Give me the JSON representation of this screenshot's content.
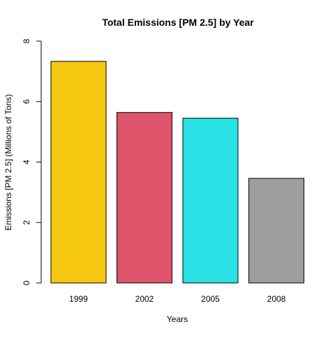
{
  "chart_data": {
    "type": "bar",
    "title": "Total Emissions [PM 2.5] by Year",
    "xlabel": "Years",
    "ylabel": "Emissions [PM 2.5] (Millions of Tons)",
    "categories": [
      "1999",
      "2002",
      "2005",
      "2008"
    ],
    "values": [
      7.33,
      5.64,
      5.45,
      3.46
    ],
    "colors": [
      "#F5C710",
      "#DF536B",
      "#28E2E5",
      "#9E9E9E"
    ],
    "ylim": [
      0,
      8
    ],
    "yticks": [
      "0",
      "2",
      "4",
      "6",
      "8"
    ],
    "grid": false,
    "legend": "none"
  }
}
